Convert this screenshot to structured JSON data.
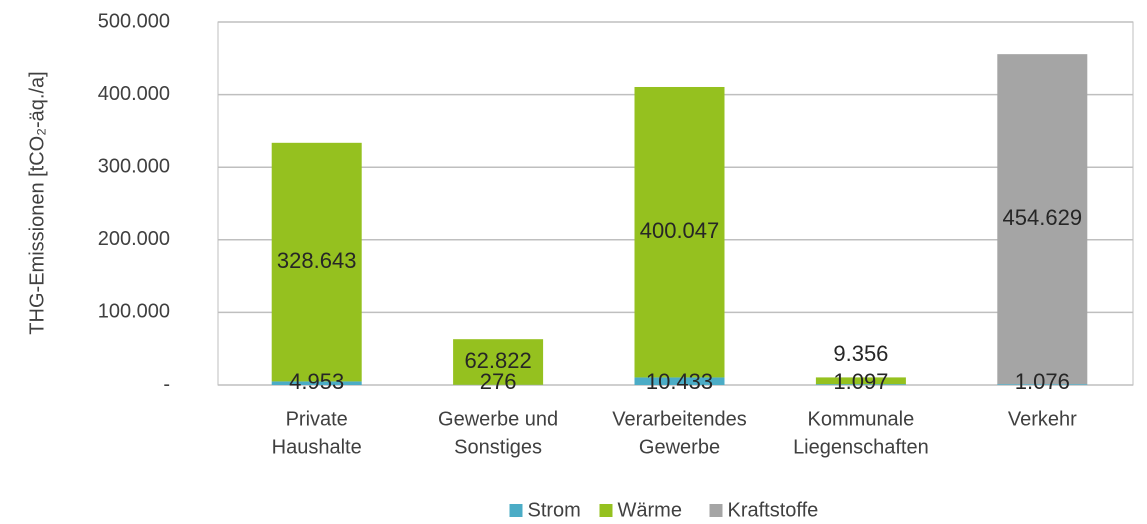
{
  "chart_data": {
    "type": "stacked_bar",
    "y_axis_label": "THG-Emissionen [tCO₂-äq./a]",
    "categories": [
      [
        "Private",
        "Haushalte"
      ],
      [
        "Gewerbe und",
        "Sonstiges"
      ],
      [
        "Verarbeitendes",
        "Gewerbe"
      ],
      [
        "Kommunale",
        "Liegenschaften"
      ],
      [
        "Verkehr"
      ]
    ],
    "series": [
      {
        "name": "Strom",
        "color": "#4bacc6",
        "values": [
          4953,
          276,
          10433,
          1097,
          1076
        ],
        "value_labels": [
          "4.953",
          "276",
          "10.433",
          "1.097",
          "1.076"
        ]
      },
      {
        "name": "Wärme",
        "color": "#95c11f",
        "values": [
          328643,
          62822,
          400047,
          9356,
          null
        ],
        "value_labels": [
          "328.643",
          "62.822",
          "400.047",
          "9.356",
          null
        ]
      },
      {
        "name": "Kraftstoffe",
        "color": "#a5a5a5",
        "values": [
          null,
          null,
          null,
          null,
          454629
        ],
        "value_labels": [
          null,
          null,
          null,
          null,
          "454.629"
        ]
      }
    ],
    "ylim": [
      0,
      500000
    ],
    "yticks": [
      {
        "value": 0,
        "label": "-"
      },
      {
        "value": 100000,
        "label": "100.000"
      },
      {
        "value": 200000,
        "label": "200.000"
      },
      {
        "value": 300000,
        "label": "300.000"
      },
      {
        "value": 400000,
        "label": "400.000"
      },
      {
        "value": 500000,
        "label": "500.000"
      }
    ],
    "grid": true
  }
}
